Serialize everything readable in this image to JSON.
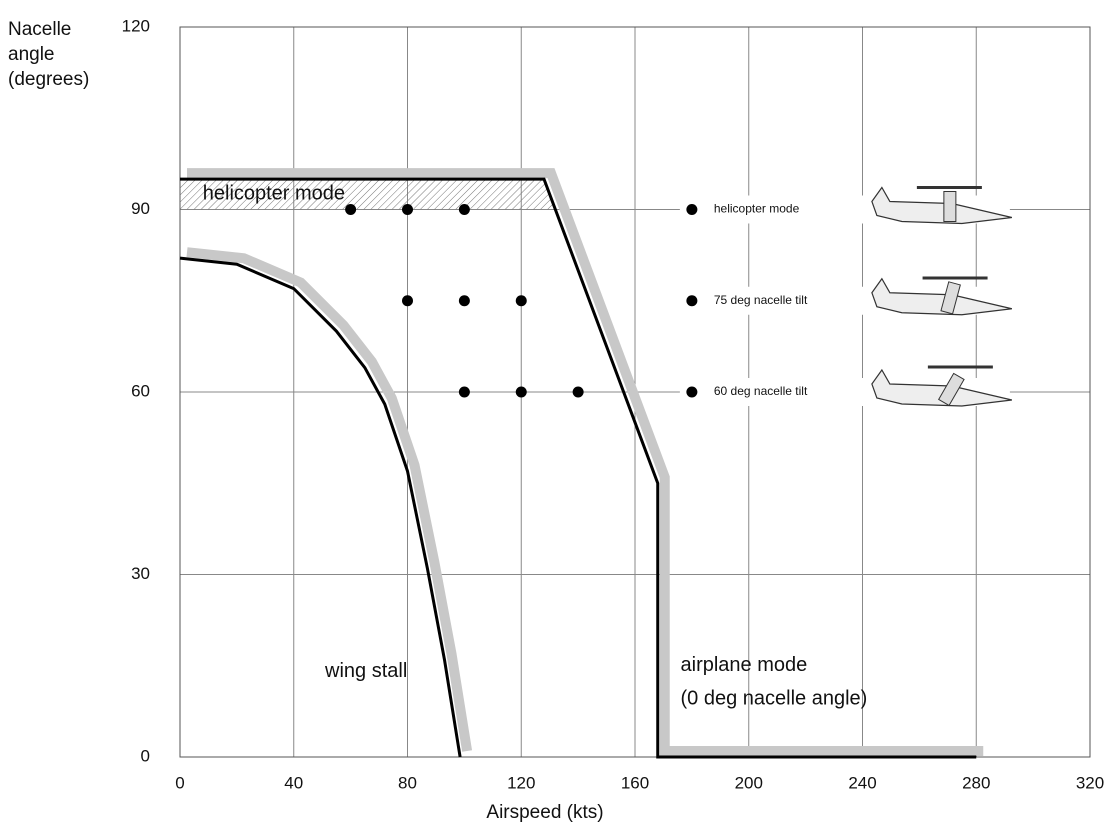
{
  "chart_data": {
    "type": "line",
    "x_label": "Airspeed (kts)",
    "y_label": [
      "Nacelle",
      "angle",
      "(degrees)"
    ],
    "xlim": [
      0,
      320
    ],
    "xticks": [
      0,
      40,
      80,
      120,
      160,
      200,
      240,
      280,
      320
    ],
    "ylim": [
      0,
      120
    ],
    "yticks": [
      0,
      30,
      60,
      90,
      120
    ],
    "grid": true,
    "lines": [
      {
        "x": [
          0,
          20,
          40,
          55,
          65,
          72,
          80,
          87,
          93,
          98.5
        ],
        "values": [
          82,
          81,
          77,
          70,
          64,
          58,
          47,
          31,
          16,
          0
        ],
        "color": "#000"
      },
      {
        "x": [
          0,
          128,
          168,
          168,
          280
        ],
        "values": [
          95,
          95,
          45,
          0,
          0
        ],
        "color": "#000"
      }
    ],
    "series": [
      {
        "name": "helicopter mode",
        "x": [
          60,
          80,
          100
        ],
        "values": [
          90,
          90,
          90
        ],
        "color": "#000"
      },
      {
        "name": "75 deg nacelle tilt",
        "x": [
          80,
          100,
          120
        ],
        "values": [
          75,
          75,
          75
        ],
        "color": "#000"
      },
      {
        "name": "60 deg nacelle tilt",
        "x": [
          100,
          120,
          140
        ],
        "values": [
          60,
          60,
          60
        ],
        "color": "#000"
      }
    ],
    "annotations": [
      "helicopter mode",
      "wing stall",
      "airplane mode",
      "(0 deg nacelle angle)"
    ]
  }
}
